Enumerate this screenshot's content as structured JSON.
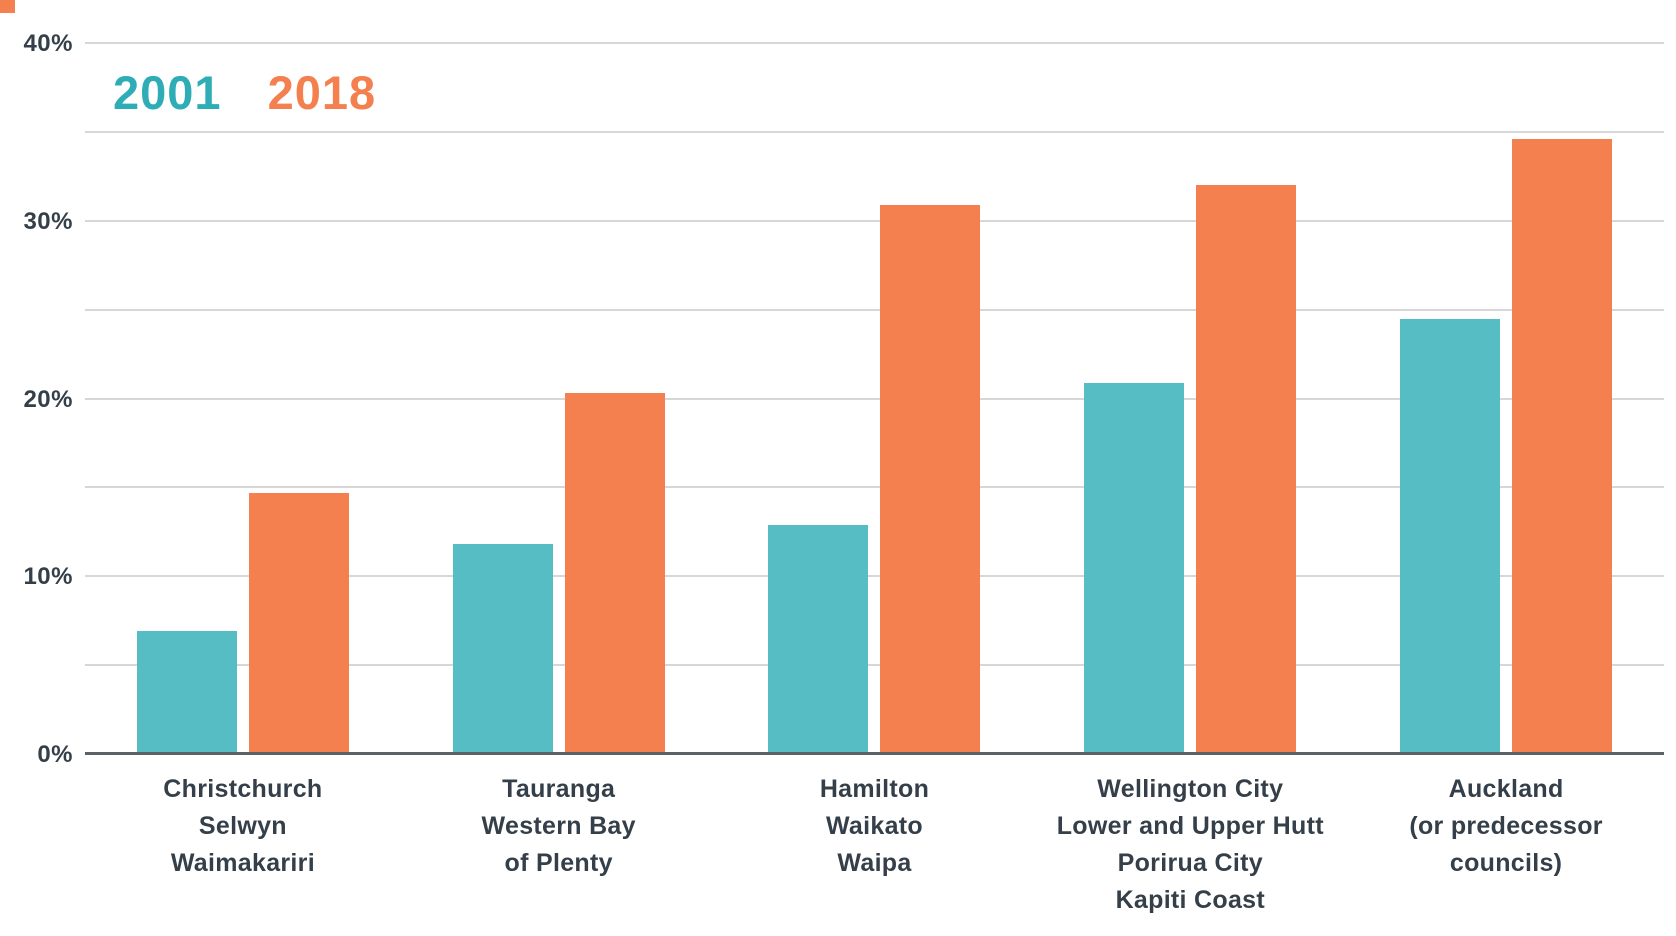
{
  "chart_data": {
    "type": "bar",
    "title": "",
    "xlabel": "",
    "ylabel": "",
    "categories": [
      [
        "Christchurch",
        "Selwyn",
        "Waimakariri"
      ],
      [
        "Tauranga",
        "Western Bay",
        "of Plenty"
      ],
      [
        "Hamilton",
        "Waikato",
        "Waipa"
      ],
      [
        "Wellington City",
        "Lower and Upper Hutt",
        "Porirua City",
        "Kapiti Coast"
      ],
      [
        "Auckland",
        "(or predecessor",
        "councils)"
      ]
    ],
    "series": [
      {
        "name": "2001",
        "color": "#57bdc4",
        "legend_color": "#2eadb6",
        "values": [
          6.9,
          11.8,
          12.9,
          20.9,
          24.5
        ]
      },
      {
        "name": "2018",
        "color": "#f3804e",
        "legend_color": "#f3804e",
        "values": [
          14.7,
          20.3,
          30.9,
          32.0,
          34.6
        ]
      }
    ],
    "ylim": [
      0,
      40
    ],
    "y_major_ticks": [
      0,
      10,
      20,
      30,
      40
    ],
    "y_major_tick_labels": [
      "0%",
      "10%",
      "20%",
      "30%",
      "40%"
    ],
    "y_minor_step": 5,
    "grid": "horizontal-only",
    "legend_position": "top-left-inside",
    "colors": {
      "axis_text": "#353f49",
      "gridline": "#d7d7d7",
      "baseline": "#5a6167",
      "corner_mark": "#f3804e",
      "background": "#ffffff"
    }
  }
}
